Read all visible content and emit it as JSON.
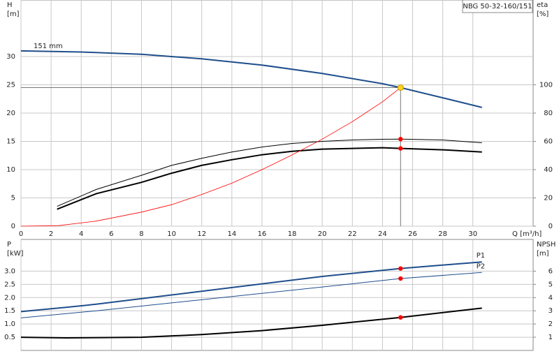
{
  "chart_data": [
    {
      "type": "line",
      "title": "NBG 50-32-160/151",
      "ylabel": "H",
      "yunit": "[m]",
      "y2label": "eta",
      "y2unit": "[%]",
      "xlabel": "Q [m³/h]",
      "xlim": [
        0,
        34
      ],
      "xticks": [
        0,
        2,
        4,
        6,
        8,
        10,
        12,
        14,
        16,
        18,
        20,
        22,
        24,
        26,
        28,
        30
      ],
      "ylim": [
        0,
        40
      ],
      "yticks": [
        0,
        5,
        10,
        15,
        20,
        25,
        30
      ],
      "y2lim": [
        0,
        160
      ],
      "y2ticks": [
        0,
        20,
        40,
        60,
        80,
        100
      ],
      "grid": true,
      "series": [
        {
          "name": "151 mm",
          "color": "#1f4e8c",
          "line_width": 2,
          "x": [
            0,
            4,
            8,
            12,
            16,
            20,
            24,
            25.2,
            28,
            30.6
          ],
          "values": [
            31,
            30.8,
            30.4,
            29.6,
            28.5,
            27,
            25.2,
            24.5,
            22.7,
            21
          ]
        },
        {
          "color": "#000000",
          "line_width": 1,
          "axis": "y2",
          "x": [
            2.4,
            5,
            8,
            10,
            12,
            14,
            16,
            18,
            20,
            22,
            24,
            25.2,
            28,
            30.6
          ],
          "values": [
            14,
            26,
            36,
            43,
            48,
            52.5,
            56,
            58.5,
            60,
            61,
            61.5,
            61.6,
            61,
            59
          ]
        },
        {
          "color": "#000000",
          "line_width": 2,
          "axis": "y2",
          "x": [
            2.4,
            5,
            8,
            10,
            12,
            14,
            16,
            18,
            20,
            22,
            24,
            25.2,
            28,
            30.6
          ],
          "values": [
            12,
            23,
            31,
            37.5,
            43,
            47,
            50.5,
            53,
            54.5,
            55,
            55.5,
            55,
            54,
            52.5
          ]
        },
        {
          "color": "#ff0000",
          "line_width": 0.8,
          "x": [
            0,
            2.5,
            5,
            8,
            10,
            12,
            14,
            16,
            18,
            20,
            22,
            24,
            25.2
          ],
          "values": [
            0,
            0.1,
            0.9,
            2.5,
            3.8,
            5.6,
            7.6,
            10,
            12.6,
            15.4,
            18.5,
            22,
            24.5
          ]
        }
      ],
      "markers": [
        {
          "x": 25.2,
          "y": 24.5,
          "color": "#ffd21f",
          "guides": true
        },
        {
          "x": 25.2,
          "y": 61.6,
          "axis": "y2",
          "color": "#ff0000"
        },
        {
          "x": 25.2,
          "y": 55,
          "axis": "y2",
          "color": "#ff0000"
        }
      ]
    },
    {
      "type": "line",
      "ylabel": "P",
      "yunit": "[kW]",
      "y2label": "NPSH",
      "y2unit": "[m]",
      "xlim": [
        0,
        34
      ],
      "xticks": [
        0,
        2,
        4,
        6,
        8,
        10,
        12,
        14,
        16,
        18,
        20,
        22,
        24,
        26,
        28,
        30
      ],
      "show_xtick_labels": false,
      "ylim": [
        0,
        4.2
      ],
      "yticks": [
        0.5,
        {
          "value": 1,
          "label": "1.0"
        },
        1.5,
        {
          "value": 2,
          "label": "2.0"
        },
        2.5,
        {
          "value": 3,
          "label": "3.0"
        }
      ],
      "y2lim": [
        0,
        8.4
      ],
      "y2ticks": [
        1,
        2,
        3,
        4,
        5,
        6
      ],
      "grid": true,
      "series": [
        {
          "name": "P1",
          "color": "#1f4e8c",
          "line_width": 2,
          "x": [
            0,
            3,
            5,
            10,
            15,
            20,
            25.2,
            30.6
          ],
          "values": [
            1.47,
            1.63,
            1.75,
            2.1,
            2.45,
            2.8,
            3.1,
            3.35
          ]
        },
        {
          "name": "P2",
          "color": "#1f4e8c",
          "line_width": 1,
          "x": [
            0,
            5,
            10,
            15,
            20,
            25.2,
            30.6
          ],
          "values": [
            1.23,
            1.5,
            1.8,
            2.1,
            2.4,
            2.72,
            2.95
          ]
        },
        {
          "color": "#000000",
          "line_width": 2,
          "axis": "y2",
          "x": [
            0,
            3,
            8,
            12,
            16,
            20,
            25.2,
            30.6
          ],
          "values": [
            1,
            0.95,
            1,
            1.2,
            1.5,
            1.9,
            2.5,
            3.2
          ]
        }
      ],
      "markers": [
        {
          "x": 25.2,
          "y": 3.1,
          "color": "#ff0000"
        },
        {
          "x": 25.2,
          "y": 2.72,
          "color": "#ff0000"
        },
        {
          "x": 25.2,
          "y": 2.5,
          "axis": "y2",
          "color": "#ff0000"
        }
      ]
    }
  ]
}
